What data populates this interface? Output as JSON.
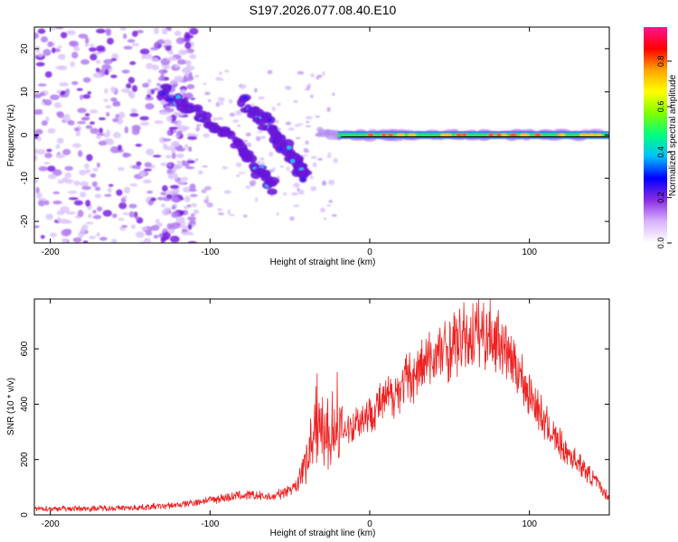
{
  "title": "S197.2026.077.08.40.E10",
  "chart_data": [
    {
      "type": "heatmap",
      "xlabel": "Height of straight line (km)",
      "ylabel": "Frequency (Hz)",
      "xlim": [
        -210,
        150
      ],
      "ylim": [
        -25,
        25
      ],
      "x_ticks": [
        -200,
        -100,
        0,
        100
      ],
      "y_ticks": [
        -20,
        -10,
        0,
        10,
        20
      ],
      "colorbar": {
        "label": "Normalized spectral amplitude",
        "range": [
          0.0,
          0.95
        ],
        "ticks": [
          "0.0",
          "0.2",
          "0.4",
          "0.6",
          "0.8"
        ],
        "colors": [
          "#ffffff",
          "#d9b3ff",
          "#8a2be2",
          "#0000ff",
          "#00bfff",
          "#00ff7f",
          "#7fff00",
          "#ffff00",
          "#ffa500",
          "#ff0000",
          "#ff1493"
        ]
      },
      "features": [
        {
          "name": "scattered noise",
          "x_range": [
            -210,
            -110
          ],
          "freq_range": [
            -25,
            25
          ]
        },
        {
          "name": "descending streak 1",
          "points": [
            [
              -130,
              10
            ],
            [
              -110,
              6
            ],
            [
              -95,
              2
            ],
            [
              -80,
              -4
            ],
            [
              -70,
              -8
            ],
            [
              -60,
              -12
            ]
          ]
        },
        {
          "name": "descending streak 2",
          "points": [
            [
              -80,
              8
            ],
            [
              -65,
              3
            ],
            [
              -55,
              -2
            ],
            [
              -45,
              -7
            ],
            [
              -40,
              -10
            ]
          ]
        },
        {
          "name": "steady line",
          "x_range": [
            -30,
            150
          ],
          "freq": 0
        }
      ]
    },
    {
      "type": "line",
      "xlabel": "Height of straight line (km)",
      "ylabel": "SNR (10 * v/v)",
      "xlim": [
        -210,
        150
      ],
      "ylim": [
        0,
        780
      ],
      "x_ticks": [
        -200,
        -100,
        0,
        100
      ],
      "y_ticks": [
        0,
        200,
        400,
        600
      ],
      "color": "#ee2222",
      "envelope": {
        "x": [
          -210,
          -150,
          -120,
          -100,
          -80,
          -60,
          -45,
          -40,
          -35,
          -30,
          -25,
          -20,
          -10,
          0,
          10,
          20,
          40,
          60,
          70,
          80,
          90,
          100,
          110,
          120,
          130,
          140,
          150
        ],
        "y": [
          22,
          25,
          35,
          55,
          70,
          65,
          110,
          190,
          260,
          300,
          280,
          290,
          330,
          370,
          410,
          470,
          570,
          640,
          660,
          640,
          560,
          440,
          330,
          250,
          190,
          130,
          60
        ]
      }
    }
  ]
}
